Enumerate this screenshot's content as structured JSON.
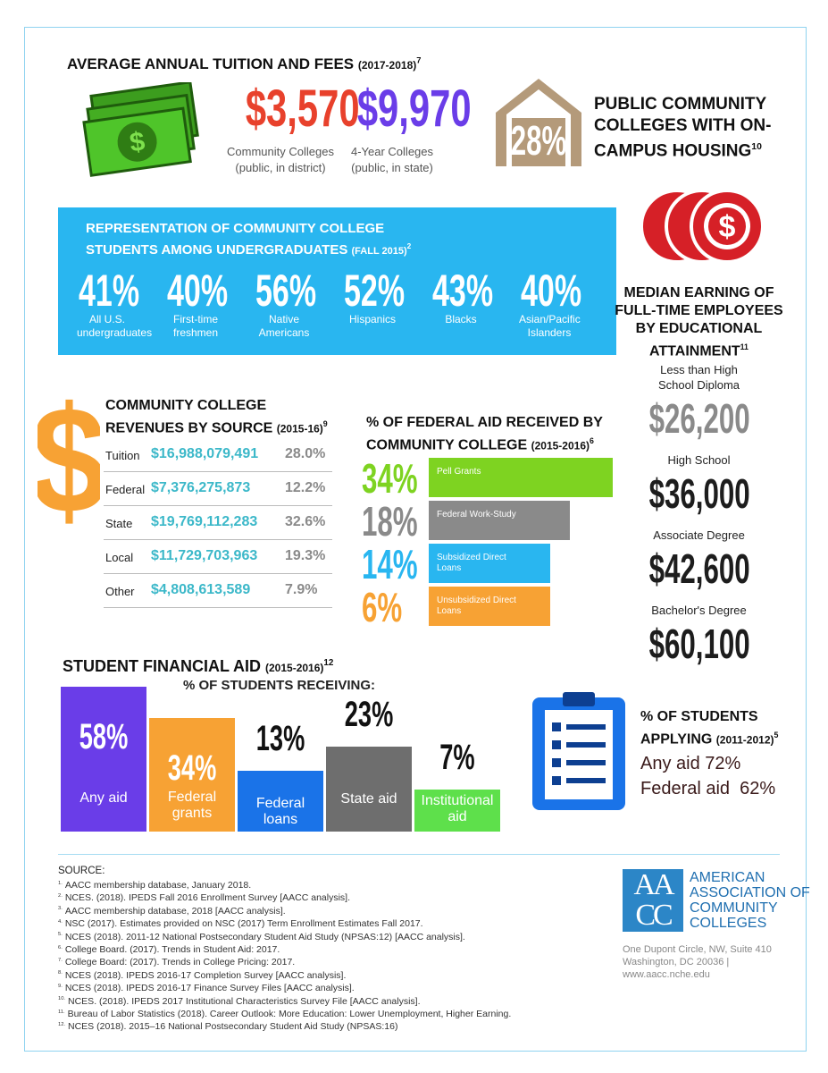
{
  "tuition": {
    "title": "AVERAGE ANNUAL TUITION AND FEES",
    "period": "(2017-2018)",
    "note": "7",
    "items": [
      {
        "amount": "$3,570",
        "label": "Community Colleges",
        "sub": "(public, in district)"
      },
      {
        "amount": "$9,970",
        "label": "4-Year Colleges",
        "sub": "(public, in state)"
      }
    ]
  },
  "housing": {
    "value": "28%",
    "title": "PUBLIC COMMUNITY COLLEGES WITH ON-CAMPUS HOUSING",
    "note": "10"
  },
  "representation": {
    "title_line1": "REPRESENTATION OF COMMUNITY COLLEGE",
    "title_line2": "STUDENTS AMONG UNDERGRADUATES",
    "period": "(FALL 2015)",
    "note": "2",
    "items": [
      {
        "value": "41%",
        "label": "All U.S. undergraduates"
      },
      {
        "value": "40%",
        "label": "First-time freshmen"
      },
      {
        "value": "56%",
        "label": "Native Americans"
      },
      {
        "value": "52%",
        "label": "Hispanics"
      },
      {
        "value": "43%",
        "label": "Blacks"
      },
      {
        "value": "40%",
        "label": "Asian/Pacific Islanders"
      }
    ]
  },
  "earnings": {
    "title": "MEDIAN EARNING OF FULL-TIME EMPLOYEES BY EDUCATIONAL ATTAINMENT",
    "note": "11",
    "items": [
      {
        "label": "Less than High School Diploma",
        "value": "$26,200"
      },
      {
        "label": "High School",
        "value": "$36,000"
      },
      {
        "label": "Associate Degree",
        "value": "$42,600"
      },
      {
        "label": "Bachelor's Degree",
        "value": "$60,100"
      }
    ]
  },
  "revenues": {
    "title_line1": "COMMUNITY COLLEGE",
    "title_line2": "REVENUES BY SOURCE",
    "period": "(2015-16)",
    "note": "9",
    "rows": [
      [
        "Tuition",
        "$16,988,079,491",
        "28.0%"
      ],
      [
        "Federal",
        "$7,376,275,873",
        "12.2%"
      ],
      [
        "State",
        "$19,769,112,283",
        "32.6%"
      ],
      [
        "Local",
        "$11,729,703,963",
        "19.3%"
      ],
      [
        "Other",
        "$4,808,613,589",
        "7.9%"
      ]
    ]
  },
  "federal_aid": {
    "title_line1": "% OF FEDERAL AID RECEIVED BY",
    "title_line2": "COMMUNITY COLLEGE",
    "period": "(2015-2016)",
    "note": "6",
    "items": [
      {
        "value": "34%",
        "label": "Pell Grants"
      },
      {
        "value": "18%",
        "label": "Federal Work-Study"
      },
      {
        "value": "14%",
        "label": "Subsidized Direct Loans"
      },
      {
        "value": "6%",
        "label": "Unsubsidized Direct Loans"
      }
    ]
  },
  "student_aid": {
    "title": "STUDENT FINANCIAL AID",
    "period": "(2015-2016)",
    "note": "12",
    "subtitle": "% OF STUDENTS RECEIVING:",
    "items": [
      {
        "value": "58%",
        "label": "Any aid"
      },
      {
        "value": "34%",
        "label": "Federal grants"
      },
      {
        "value": "13%",
        "label": "Federal loans"
      },
      {
        "value": "23%",
        "label": "State aid"
      },
      {
        "value": "7%",
        "label": "Institutional aid"
      }
    ]
  },
  "applying": {
    "title": "% OF STUDENTS APPLYING",
    "period": "(2011-2012)",
    "note": "5",
    "items": [
      "Any aid 72%",
      "Federal aid  62%"
    ]
  },
  "sources": {
    "heading": "SOURCE:",
    "items": [
      {
        "num": "1.",
        "text": "AACC membership database, January 2018."
      },
      {
        "num": "2.",
        "text": "NCES. (2018). IPEDS Fall 2016 Enrollment Survey [AACC analysis]."
      },
      {
        "num": "3.",
        "text": "AACC membership database, 2018 [AACC analysis]."
      },
      {
        "num": "4.",
        "text": "NSC (2017). Estimates provided on NSC (2017) Term Enrollment Estimates Fall 2017."
      },
      {
        "num": "5.",
        "text": "NCES (2018). 2011-12 National Postsecondary Student Aid Study (NPSAS:12) [AACC analysis]."
      },
      {
        "num": "6.",
        "text": "College Board. (2017). Trends in Student Aid: 2017."
      },
      {
        "num": "7.",
        "text": "College Board: (2017). Trends in College Pricing: 2017."
      },
      {
        "num": "8.",
        "text": "NCES (2018). IPEDS 2016-17 Completion Survey [AACC analysis]."
      },
      {
        "num": "9.",
        "text": "NCES (2018). IPEDS 2016-17 Finance Survey Files [AACC analysis]."
      },
      {
        "num": "10.",
        "text": "NCES. (2018). IPEDS 2017 Institutional Characteristics Survey File [AACC analysis]."
      },
      {
        "num": "11.",
        "text": "Bureau of Labor Statistics (2018). Career Outlook: More Education: Lower Unemployment, Higher Earning."
      },
      {
        "num": "12.",
        "text": "NCES (2018). 2015–16 National Postsecondary Student Aid Study (NPSAS:16)"
      }
    ]
  },
  "organization": {
    "logo": "AACC",
    "name_lines": [
      "AMERICAN",
      "ASSOCIATION OF",
      "COMMUNITY",
      "COLLEGES"
    ],
    "address_lines": [
      "One Dupont Circle, NW, Suite 410",
      "Washington, DC 20036 |",
      "www.aacc.nche.edu"
    ]
  }
}
